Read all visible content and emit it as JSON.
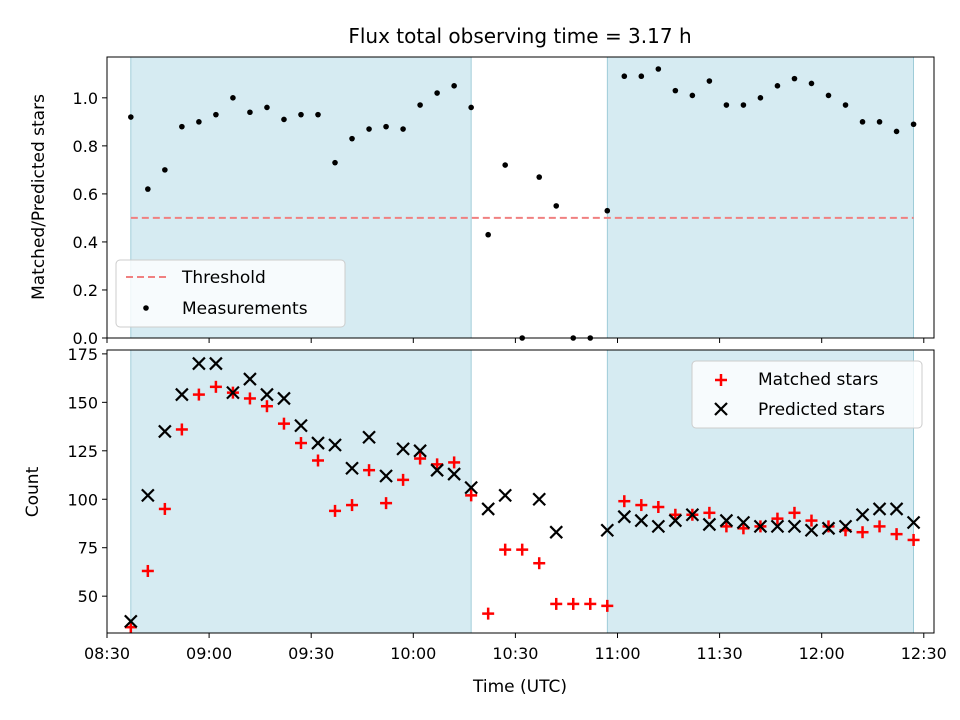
{
  "title": "Flux total observing time = 3.17 h",
  "chart_data": [
    {
      "type": "scatter",
      "panel": "top",
      "title": "Flux total observing time = 3.17 h",
      "xlabel": "",
      "ylabel": "Matched/Predicted stars",
      "ylim": [
        0,
        1.17
      ],
      "yticks": [
        "0.0",
        "0.2",
        "0.4",
        "0.6",
        "0.8",
        "1.0"
      ],
      "threshold": 0.5,
      "legend_position": "lower-left",
      "shaded_intervals": [
        [
          "08:37",
          "10:17"
        ],
        [
          "10:57",
          "12:27"
        ]
      ],
      "series": [
        {
          "name": "Measurements",
          "color": "#000000",
          "marker": "dot",
          "points": [
            [
              "08:37",
              0.92
            ],
            [
              "08:42",
              0.62
            ],
            [
              "08:47",
              0.7
            ],
            [
              "08:52",
              0.88
            ],
            [
              "08:57",
              0.9
            ],
            [
              "09:02",
              0.93
            ],
            [
              "09:07",
              1.0
            ],
            [
              "09:12",
              0.94
            ],
            [
              "09:17",
              0.96
            ],
            [
              "09:22",
              0.91
            ],
            [
              "09:27",
              0.93
            ],
            [
              "09:32",
              0.93
            ],
            [
              "09:37",
              0.73
            ],
            [
              "09:42",
              0.83
            ],
            [
              "09:47",
              0.87
            ],
            [
              "09:52",
              0.88
            ],
            [
              "09:57",
              0.87
            ],
            [
              "10:02",
              0.97
            ],
            [
              "10:07",
              1.02
            ],
            [
              "10:12",
              1.05
            ],
            [
              "10:17",
              0.96
            ],
            [
              "10:22",
              0.43
            ],
            [
              "10:27",
              0.72
            ],
            [
              "10:32",
              0.0
            ],
            [
              "10:37",
              0.67
            ],
            [
              "10:42",
              0.55
            ],
            [
              "10:47",
              0.0
            ],
            [
              "10:52",
              0.0
            ],
            [
              "10:57",
              0.53
            ],
            [
              "11:02",
              1.09
            ],
            [
              "11:07",
              1.09
            ],
            [
              "11:12",
              1.12
            ],
            [
              "11:17",
              1.03
            ],
            [
              "11:22",
              1.01
            ],
            [
              "11:27",
              1.07
            ],
            [
              "11:32",
              0.97
            ],
            [
              "11:37",
              0.97
            ],
            [
              "11:42",
              1.0
            ],
            [
              "11:47",
              1.05
            ],
            [
              "11:52",
              1.08
            ],
            [
              "11:57",
              1.06
            ],
            [
              "12:02",
              1.01
            ],
            [
              "12:07",
              0.97
            ],
            [
              "12:12",
              0.9
            ],
            [
              "12:17",
              0.9
            ],
            [
              "12:22",
              0.86
            ],
            [
              "12:27",
              0.89
            ]
          ]
        },
        {
          "name": "Threshold",
          "color": "#f08080",
          "style": "dashed",
          "y": 0.5
        }
      ]
    },
    {
      "type": "scatter",
      "panel": "bottom",
      "xlabel": "Time (UTC)",
      "ylabel": "Count",
      "ylim": [
        31,
        177
      ],
      "xlim": [
        "08:30",
        "12:33"
      ],
      "yticks": [
        "50",
        "75",
        "100",
        "125",
        "150",
        "175"
      ],
      "xticks": [
        "08:30",
        "09:00",
        "09:30",
        "10:00",
        "10:30",
        "11:00",
        "11:30",
        "12:00",
        "12:30"
      ],
      "legend_position": "upper-right",
      "shaded_intervals": [
        [
          "08:37",
          "10:17"
        ],
        [
          "10:57",
          "12:27"
        ]
      ],
      "x": [
        "08:37",
        "08:42",
        "08:47",
        "08:52",
        "08:57",
        "09:02",
        "09:07",
        "09:12",
        "09:17",
        "09:22",
        "09:27",
        "09:32",
        "09:37",
        "09:42",
        "09:47",
        "09:52",
        "09:57",
        "10:02",
        "10:07",
        "10:12",
        "10:17",
        "10:22",
        "10:27",
        "10:32",
        "10:37",
        "10:42",
        "10:47",
        "10:52",
        "10:57",
        "11:02",
        "11:07",
        "11:12",
        "11:17",
        "11:22",
        "11:27",
        "11:32",
        "11:37",
        "11:42",
        "11:47",
        "11:52",
        "11:57",
        "12:02",
        "12:07",
        "12:12",
        "12:17",
        "12:22",
        "12:27"
      ],
      "series": [
        {
          "name": "Matched stars",
          "color": "#ff0000",
          "marker": "plus",
          "values": [
            34,
            63,
            95,
            136,
            154,
            158,
            155,
            152,
            148,
            139,
            129,
            120,
            94,
            97,
            115,
            98,
            110,
            121,
            118,
            119,
            102,
            41,
            74,
            74,
            67,
            46,
            46,
            46,
            45,
            99,
            97,
            96,
            92,
            92,
            93,
            86,
            85,
            86,
            90,
            93,
            89,
            86,
            84,
            83,
            86,
            82,
            79
          ]
        },
        {
          "name": "Predicted stars",
          "color": "#000000",
          "marker": "x",
          "values": [
            37,
            102,
            135,
            154,
            170,
            170,
            155,
            162,
            154,
            152,
            138,
            129,
            128,
            116,
            132,
            112,
            126,
            125,
            115,
            113,
            106,
            95,
            102,
            null,
            100,
            83,
            null,
            null,
            84,
            91,
            89,
            86,
            89,
            92,
            87,
            89,
            88,
            86,
            86,
            86,
            84,
            85,
            86,
            92,
            95,
            95,
            88
          ]
        }
      ]
    }
  ]
}
